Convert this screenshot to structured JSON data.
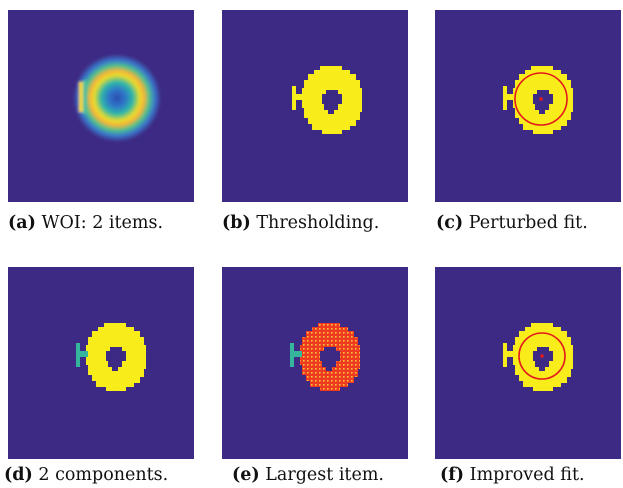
{
  "colors": {
    "background": "#3d2a84",
    "foreground": "#f9ec1b",
    "small_component": "#35b59b",
    "largest_item_fill": "#ef3a22",
    "fit_circle": "#e41a1c"
  },
  "figure": {
    "panels": [
      {
        "label": "(a)",
        "caption": "WOI: 2 items."
      },
      {
        "label": "(b)",
        "caption": "Thresholding."
      },
      {
        "label": "(c)",
        "caption": "Perturbed fit."
      },
      {
        "label": "(d)",
        "caption": "2 components."
      },
      {
        "label": "(e)",
        "caption": "Largest item."
      },
      {
        "label": "(f)",
        "caption": "Improved fit."
      }
    ]
  }
}
